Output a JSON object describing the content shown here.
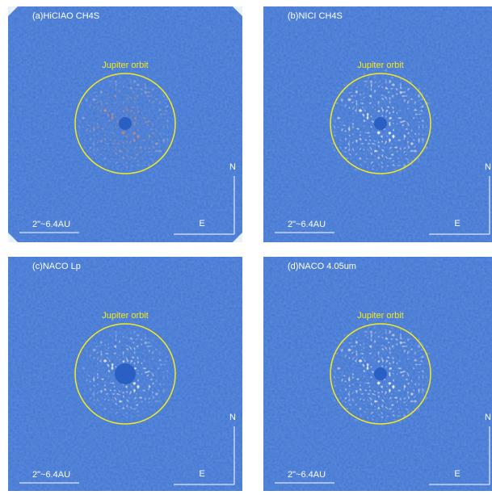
{
  "panels": [
    {
      "label": "(a)HiCIAO CH4S",
      "orbit_label": "Jupiter orbit",
      "scale_label": "2\"~6.4AU",
      "north": "N",
      "east": "E"
    },
    {
      "label": "(b)NICI CH4S",
      "orbit_label": "Jupiter orbit",
      "scale_label": "2\"~6.4AU",
      "north": "N",
      "east": "E"
    },
    {
      "label": "(c)NACO Lp",
      "orbit_label": "Jupiter orbit",
      "scale_label": "2\"~6.4AU",
      "north": "N",
      "east": "E"
    },
    {
      "label": "(d)NACO 4.05um",
      "orbit_label": "Jupiter orbit",
      "scale_label": "2\"~6.4AU",
      "north": "N",
      "east": "E"
    }
  ]
}
